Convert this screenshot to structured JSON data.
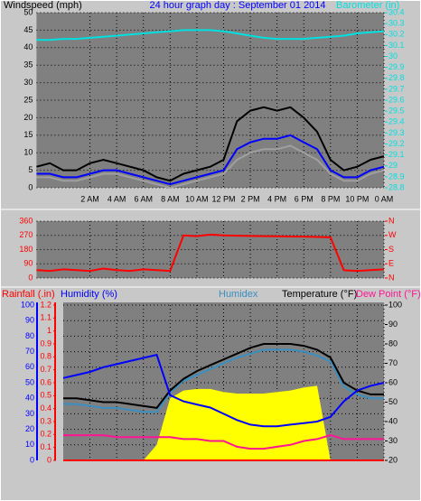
{
  "chart_data": [
    {
      "type": "line",
      "title": "24 hour graph day : September 01 2014",
      "ylabel": "Windspeed (mph)",
      "y2label": "Barometer (in)",
      "ycolor": "#000000",
      "y2color": "#00e0e0",
      "grid": true,
      "xlim": [
        -2,
        24
      ],
      "xticks": [
        {
          "value": 2,
          "label": "2 AM"
        },
        {
          "value": 4,
          "label": "4 AM"
        },
        {
          "value": 6,
          "label": "6 AM"
        },
        {
          "value": 8,
          "label": "8 AM"
        },
        {
          "value": 10,
          "label": "10 AM"
        },
        {
          "value": 12,
          "label": "12 PM"
        },
        {
          "value": 14,
          "label": "2 PM"
        },
        {
          "value": 16,
          "label": "4 PM"
        },
        {
          "value": 18,
          "label": "6 PM"
        },
        {
          "value": 20,
          "label": "8 PM"
        },
        {
          "value": 22,
          "label": "10 PM"
        },
        {
          "value": 24,
          "label": "0 AM"
        }
      ],
      "ylim": [
        0,
        50
      ],
      "yticks": [
        0,
        5,
        10,
        15,
        20,
        25,
        30,
        35,
        40,
        45,
        50
      ],
      "y2lim": [
        28.8,
        30.4
      ],
      "y2ticks": [
        28.8,
        28.9,
        29,
        29.1,
        29.2,
        29.3,
        29.4,
        29.5,
        29.6,
        29.7,
        29.8,
        29.9,
        30,
        30.1,
        30.2,
        30.3,
        30.4
      ],
      "x": [
        -2,
        -1,
        0,
        1,
        2,
        3,
        4,
        5,
        6,
        7,
        8,
        9,
        10,
        11,
        12,
        13,
        14,
        15,
        16,
        17,
        18,
        19,
        20,
        21,
        22,
        23,
        24
      ],
      "series": [
        {
          "color": "#a0a0a0",
          "values": [
            3,
            3,
            2,
            2,
            3,
            4,
            4,
            3,
            2,
            1,
            0,
            1,
            2,
            3,
            4,
            8,
            10,
            11,
            11,
            12,
            10,
            8,
            4,
            2,
            2,
            4,
            5
          ]
        },
        {
          "color": "#000000",
          "values": [
            6,
            7,
            5,
            5,
            7,
            8,
            7,
            6,
            5,
            3,
            2,
            4,
            5,
            6,
            8,
            19,
            22,
            23,
            22,
            23,
            20,
            16,
            8,
            5,
            6,
            8,
            9
          ]
        },
        {
          "color": "#0000ff",
          "values": [
            4,
            4,
            3,
            3,
            4,
            5,
            5,
            4,
            3,
            2,
            1,
            2,
            3,
            4,
            5,
            11,
            13,
            14,
            14,
            15,
            13,
            11,
            5,
            3,
            3,
            5,
            6
          ]
        },
        {
          "color": "#00e0e0",
          "axis": "y2",
          "values": [
            30.15,
            30.15,
            30.16,
            30.16,
            30.17,
            30.18,
            30.19,
            30.2,
            30.21,
            30.22,
            30.23,
            30.24,
            30.24,
            30.24,
            30.23,
            30.21,
            30.19,
            30.17,
            30.16,
            30.16,
            30.16,
            30.17,
            30.18,
            30.19,
            30.21,
            30.22,
            30.23
          ]
        }
      ]
    },
    {
      "type": "line",
      "ycolor": "#ff0000",
      "y2color": "#ff0000",
      "grid": true,
      "xlim": [
        -2,
        24
      ],
      "ylim": [
        0,
        360
      ],
      "yticks": [
        0,
        90,
        180,
        270,
        360
      ],
      "y2lim": [
        0,
        360
      ],
      "y2ticks": [
        {
          "value": 0,
          "label": "N"
        },
        {
          "value": 90,
          "label": "E"
        },
        {
          "value": 180,
          "label": "S"
        },
        {
          "value": 270,
          "label": "W"
        },
        {
          "value": 360,
          "label": "N"
        }
      ],
      "x": [
        -2,
        -1,
        0,
        1,
        2,
        3,
        4,
        5,
        6,
        7,
        8,
        9,
        10,
        11,
        12,
        13,
        14,
        15,
        16,
        17,
        18,
        19,
        20,
        21,
        22,
        23,
        24
      ],
      "series": [
        {
          "color": "#ff0000",
          "values": [
            50,
            45,
            55,
            50,
            45,
            60,
            50,
            45,
            55,
            50,
            45,
            270,
            265,
            275,
            270,
            268,
            266,
            265,
            264,
            263,
            262,
            260,
            258,
            50,
            45,
            50,
            55
          ]
        }
      ]
    },
    {
      "type": "line",
      "ylabel": "Humidity (%)",
      "y2label": "Temperature (°F)",
      "y3label": "Rainfall (.in)",
      "label_humidex": "Humidex",
      "label_dew": "Dew Point (°F)",
      "ycolor": "#0000ff",
      "y2color": "#000000",
      "y3color": "#ff0000",
      "grid": true,
      "xlim": [
        0,
        24
      ],
      "ylim": [
        0,
        100
      ],
      "yticks": [
        0,
        10,
        20,
        30,
        40,
        50,
        60,
        70,
        80,
        90,
        100
      ],
      "y2lim": [
        20,
        100
      ],
      "y2ticks": [
        20,
        30,
        40,
        50,
        60,
        70,
        80,
        90,
        100
      ],
      "y3lim": [
        0,
        1.2
      ],
      "y3ticks": [
        0,
        0.1,
        0.2,
        0.3,
        0.4,
        0.5,
        0.6,
        0.7,
        0.8,
        0.9,
        1,
        1.1,
        1.2
      ],
      "x": [
        0,
        1,
        2,
        3,
        4,
        5,
        6,
        7,
        8,
        9,
        10,
        11,
        12,
        13,
        14,
        15,
        16,
        17,
        18,
        19,
        20,
        21,
        22,
        23,
        24
      ],
      "series": [
        {
          "color": "#ffff00",
          "fill": true,
          "values": [
            0,
            0,
            0,
            0,
            0,
            0,
            0,
            10,
            40,
            45,
            46,
            46,
            44,
            43,
            43,
            43,
            44,
            45,
            47,
            48,
            0,
            0,
            0,
            0,
            0
          ]
        },
        {
          "color": "#ff0000",
          "axis": "y3",
          "values": [
            0,
            0,
            0,
            0,
            0,
            0,
            0,
            0,
            0,
            0,
            0,
            0,
            0,
            0,
            0,
            0,
            0,
            0,
            0,
            0,
            0,
            0,
            0,
            0,
            0
          ]
        },
        {
          "color": "#ff1493",
          "axis": "y2",
          "values": [
            33,
            33,
            33,
            33,
            32,
            32,
            32,
            32,
            32,
            31,
            31,
            30,
            30,
            27,
            26,
            26,
            27,
            28,
            30,
            31,
            33,
            31,
            31,
            31,
            31
          ]
        },
        {
          "color": "#3a8fc0",
          "axis": "y2",
          "values": [
            49,
            49,
            48,
            47,
            47,
            46,
            45,
            45,
            55,
            61,
            64,
            67,
            70,
            73,
            75,
            77,
            77,
            77,
            76,
            74,
            71,
            58,
            54,
            52,
            52
          ]
        },
        {
          "color": "#000000",
          "axis": "y2",
          "values": [
            52,
            52,
            51,
            50,
            50,
            49,
            48,
            47,
            56,
            62,
            66,
            69,
            72,
            75,
            78,
            80,
            80,
            80,
            79,
            77,
            73,
            60,
            56,
            54,
            54
          ]
        },
        {
          "color": "#0000ff",
          "values": [
            53,
            55,
            57,
            60,
            62,
            64,
            66,
            68,
            42,
            38,
            36,
            34,
            30,
            26,
            23,
            22,
            22,
            23,
            24,
            25,
            28,
            38,
            45,
            48,
            50
          ]
        }
      ]
    }
  ]
}
